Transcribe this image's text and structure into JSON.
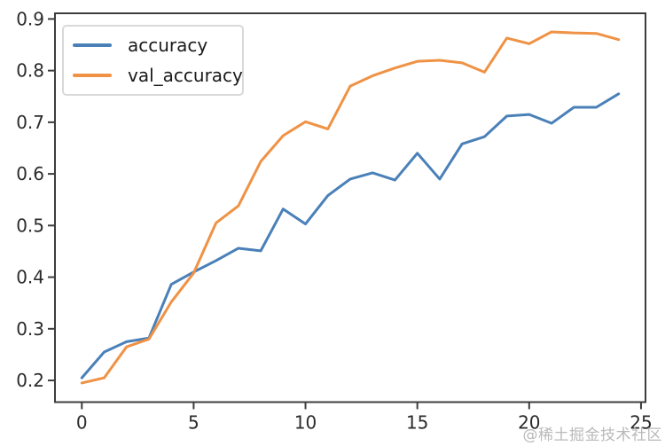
{
  "watermark": "@稀土掘金技术社区",
  "colors": {
    "accuracy_line": "#4a80b8",
    "val_accuracy_line": "#ef9245",
    "spine": "#3d3d3d",
    "tick_label": "#2b2b2b",
    "legend_border": "#d9d9d9",
    "watermark": "#b9b9b9",
    "background": "#ffffff"
  },
  "legend": {
    "items": [
      {
        "label": "accuracy"
      },
      {
        "label": "val_accuracy"
      }
    ]
  },
  "chart_data": {
    "type": "line",
    "title": "",
    "xlabel": "",
    "ylabel": "",
    "grid": false,
    "legend_position": "upper left",
    "x": [
      0,
      1,
      2,
      3,
      4,
      5,
      6,
      7,
      8,
      9,
      10,
      11,
      12,
      13,
      14,
      15,
      16,
      17,
      18,
      19,
      20,
      21,
      22,
      23,
      24
    ],
    "series": [
      {
        "name": "accuracy",
        "color": "#4a80b8",
        "values": [
          0.205,
          0.255,
          0.275,
          0.282,
          0.386,
          0.41,
          0.432,
          0.456,
          0.451,
          0.532,
          0.503,
          0.558,
          0.59,
          0.602,
          0.588,
          0.64,
          0.59,
          0.658,
          0.672,
          0.712,
          0.715,
          0.698,
          0.729,
          0.729,
          0.755
        ]
      },
      {
        "name": "val_accuracy",
        "color": "#ef9245",
        "values": [
          0.195,
          0.205,
          0.265,
          0.28,
          0.352,
          0.408,
          0.505,
          0.538,
          0.624,
          0.674,
          0.701,
          0.687,
          0.77,
          0.79,
          0.805,
          0.818,
          0.82,
          0.815,
          0.797,
          0.863,
          0.852,
          0.875,
          0.873,
          0.872,
          0.86
        ]
      }
    ],
    "x_ticks": [
      0,
      5,
      10,
      15,
      20,
      25
    ],
    "y_ticks": [
      0.2,
      0.3,
      0.4,
      0.5,
      0.6,
      0.7,
      0.8,
      0.9
    ],
    "xlim": [
      -1.2,
      25.2
    ],
    "ylim": [
      0.158,
      0.911
    ]
  }
}
